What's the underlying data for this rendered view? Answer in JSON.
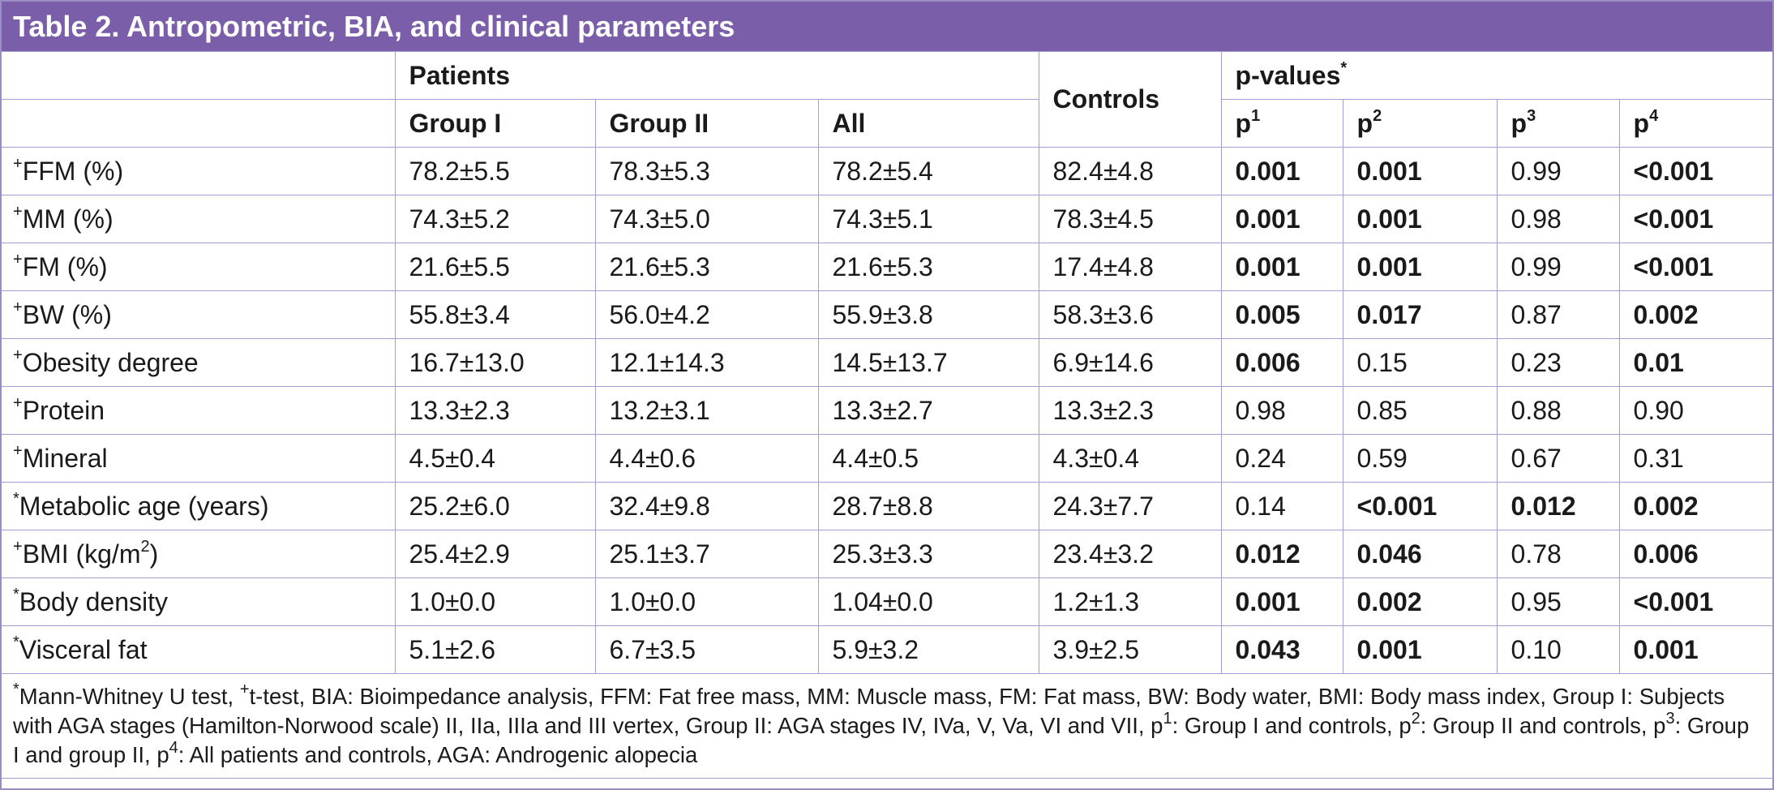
{
  "title": "Table 2. Antropometric, BIA, and clinical parameters",
  "header": {
    "patients": "Patients",
    "controls": "Controls",
    "pvalues": "p-values",
    "pvalues_sup": "*",
    "group1": "Group I",
    "group2": "Group II",
    "all": "All",
    "p1": "p",
    "p1_sup": "1",
    "p2": "p",
    "p2_sup": "2",
    "p3": "p",
    "p3_sup": "3",
    "p4": "p",
    "p4_sup": "4"
  },
  "rows": [
    {
      "mark": "+",
      "label": "FFM (%)",
      "g1": "78.2±5.5",
      "g2": "78.3±5.3",
      "all": "78.2±5.4",
      "ctrl": "82.4±4.8",
      "p1": "0.001",
      "p2": "0.001",
      "p3": "0.99",
      "p4": "<0.001"
    },
    {
      "mark": "+",
      "label": "MM (%)",
      "g1": "74.3±5.2",
      "g2": "74.3±5.0",
      "all": "74.3±5.1",
      "ctrl": "78.3±4.5",
      "p1": "0.001",
      "p2": "0.001",
      "p3": "0.98",
      "p4": "<0.001"
    },
    {
      "mark": "+",
      "label": "FM (%)",
      "g1": "21.6±5.5",
      "g2": "21.6±5.3",
      "all": "21.6±5.3",
      "ctrl": "17.4±4.8",
      "p1": "0.001",
      "p2": "0.001",
      "p3": "0.99",
      "p4": "<0.001"
    },
    {
      "mark": "+",
      "label": "BW (%)",
      "g1": "55.8±3.4",
      "g2": "56.0±4.2",
      "all": "55.9±3.8",
      "ctrl": "58.3±3.6",
      "p1": "0.005",
      "p2": "0.017",
      "p3": "0.87",
      "p4": "0.002"
    },
    {
      "mark": "+",
      "label": "Obesity degree",
      "g1": "16.7±13.0",
      "g2": "12.1±14.3",
      "all": "14.5±13.7",
      "ctrl": "6.9±14.6",
      "p1": "0.006",
      "p2": "0.15",
      "p3": "0.23",
      "p4": "0.01"
    },
    {
      "mark": "+",
      "label": "Protein",
      "g1": "13.3±2.3",
      "g2": "13.2±3.1",
      "all": "13.3±2.7",
      "ctrl": "13.3±2.3",
      "p1": "0.98",
      "p2": "0.85",
      "p3": "0.88",
      "p4": "0.90"
    },
    {
      "mark": "+",
      "label": "Mineral",
      "g1": "4.5±0.4",
      "g2": "4.4±0.6",
      "all": "4.4±0.5",
      "ctrl": "4.3±0.4",
      "p1": "0.24",
      "p2": "0.59",
      "p3": "0.67",
      "p4": "0.31"
    },
    {
      "mark": "*",
      "label": "Metabolic age (years)",
      "g1": "25.2±6.0",
      "g2": "32.4±9.8",
      "all": "28.7±8.8",
      "ctrl": "24.3±7.7",
      "p1": "0.14",
      "p2": "<0.001",
      "p3": "0.012",
      "p4": "0.002"
    },
    {
      "mark": "+",
      "label": "BMI (kg/m",
      "label_sup": "2",
      "label_end": ")",
      "g1": "25.4±2.9",
      "g2": "25.1±3.7",
      "all": "25.3±3.3",
      "ctrl": "23.4±3.2",
      "p1": "0.012",
      "p2": "0.046",
      "p3": "0.78",
      "p4": "0.006"
    },
    {
      "mark": "*",
      "label": "Body density",
      "g1": "1.0±0.0",
      "g2": "1.0±0.0",
      "all": "1.04±0.0",
      "ctrl": "1.2±1.3",
      "p1": "0.001",
      "p2": "0.002",
      "p3": "0.95",
      "p4": "<0.001"
    },
    {
      "mark": "*",
      "label": "Visceral fat",
      "g1": "5.1±2.6",
      "g2": "6.7±3.5",
      "all": "5.9±3.2",
      "ctrl": "3.9±2.5",
      "p1": "0.043",
      "p2": "0.001",
      "p3": "0.10",
      "p4": "0.001"
    }
  ],
  "bold_cells": [
    [
      true,
      true,
      false,
      true
    ],
    [
      true,
      true,
      false,
      true
    ],
    [
      true,
      true,
      false,
      true
    ],
    [
      true,
      true,
      false,
      true
    ],
    [
      true,
      false,
      false,
      true
    ],
    [
      false,
      false,
      false,
      false
    ],
    [
      false,
      false,
      false,
      false
    ],
    [
      false,
      true,
      true,
      true
    ],
    [
      true,
      true,
      false,
      true
    ],
    [
      true,
      true,
      false,
      true
    ],
    [
      true,
      true,
      false,
      true
    ]
  ],
  "notes": {
    "s1": "*",
    "t1": "Mann-Whitney U test, ",
    "s2": "+",
    "t2": "t-test, BIA: Bioimpedance analysis, FFM: Fat free mass, MM: Muscle mass, FM: Fat mass, BW: Body water, BMI: Body mass index, Group I: Subjects with AGA stages (Hamilton-Norwood scale) II, IIa, IIIa and III vertex, Group II: AGA stages IV, IVa, V, Va, VI and VII, p",
    "s3": "1",
    "t3": ": Group I and controls, p",
    "s4": "2",
    "t4": ": Group II and controls, p",
    "s5": "3",
    "t5": ": Group I and group II, p",
    "s6": "4",
    "t6": ": All patients and controls, AGA: Androgenic alopecia"
  }
}
